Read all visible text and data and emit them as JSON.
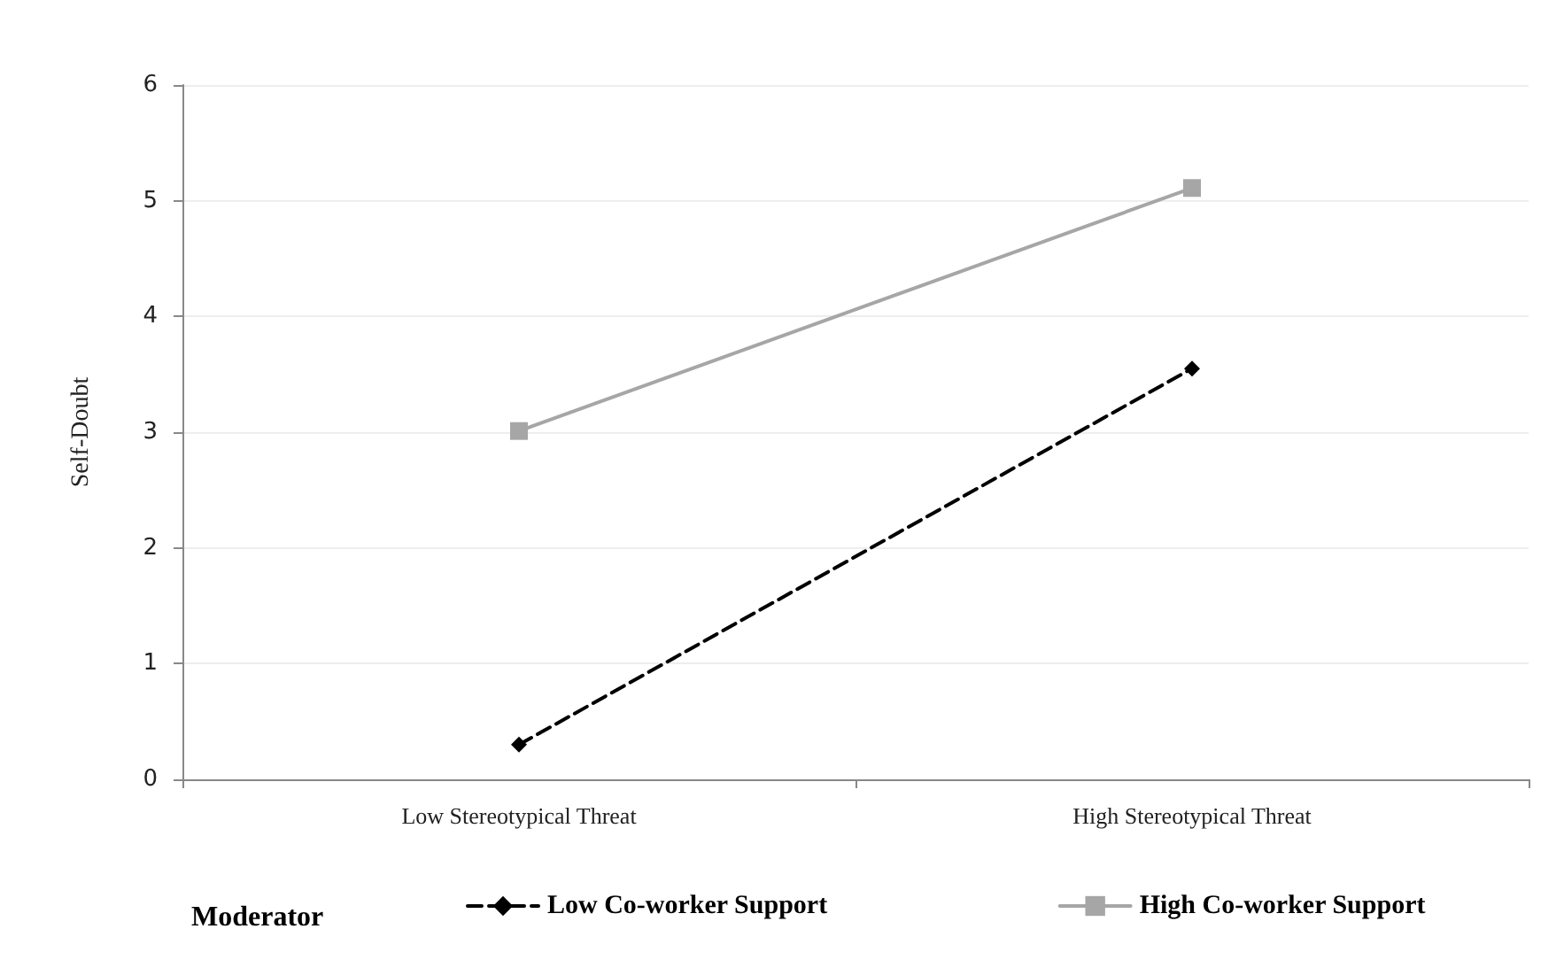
{
  "chart_data": {
    "type": "line",
    "ylabel": "Self-Doubt",
    "legend_title": "Moderator",
    "categories": [
      "Low Stereotypical Threat",
      "High Stereotypical Threat"
    ],
    "series": [
      {
        "name": "Low Co-worker Support",
        "color": "#000000",
        "values": [
          0.3,
          3.55
        ],
        "marker": "diamond",
        "line_style": "dashed"
      },
      {
        "name": "High Co-worker Support",
        "color": "#a6a6a6",
        "values": [
          3.01,
          5.11
        ],
        "marker": "square",
        "line_style": "solid"
      }
    ],
    "ylim": [
      0,
      6
    ],
    "yticks": [
      0,
      1,
      2,
      3,
      4,
      5,
      6
    ],
    "grid": "y",
    "legend": "bottom"
  }
}
